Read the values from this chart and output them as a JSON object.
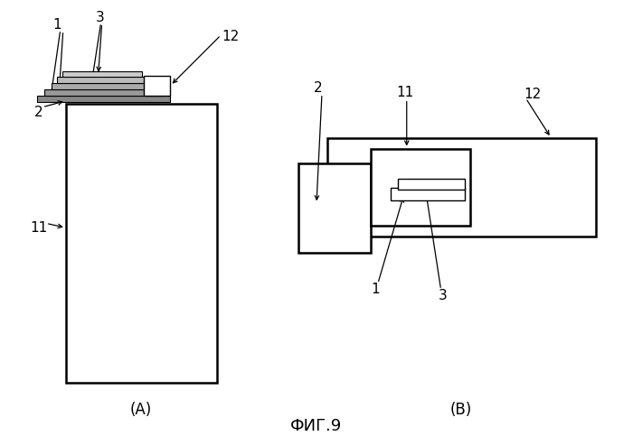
{
  "bg_color": "#ffffff",
  "line_color": "#000000",
  "title": "ФИГ.9",
  "label_A": "(A)",
  "label_B": "(B)",
  "fig_width": 7.0,
  "fig_height": 4.83
}
